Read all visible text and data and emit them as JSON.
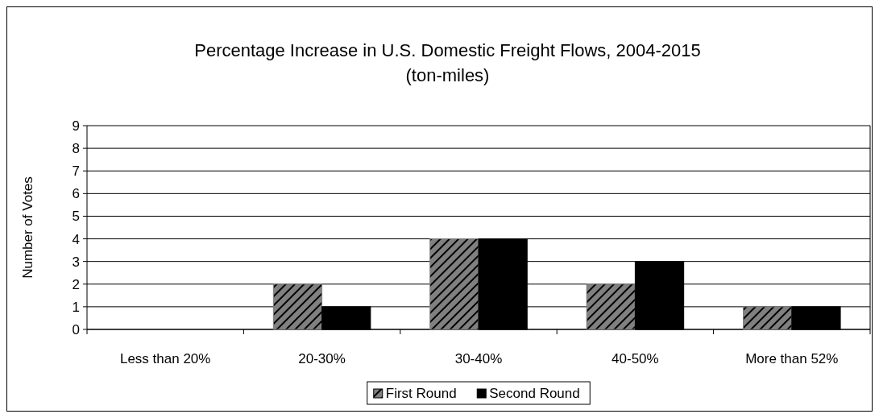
{
  "chart_data": {
    "type": "bar",
    "title": "Percentage Increase in U.S. Domestic Freight Flows, 2004-2015",
    "subtitle": "(ton-miles)",
    "ylabel": "Number of Votes",
    "categories": [
      "Less than 20%",
      "20-30%",
      "30-40%",
      "40-50%",
      "More than 52%"
    ],
    "series": [
      {
        "name": "First Round",
        "color": "#808080",
        "values": [
          0,
          2,
          4,
          2,
          1
        ]
      },
      {
        "name": "Second Round",
        "color": "#000000",
        "values": [
          0,
          1,
          4,
          3,
          1
        ]
      }
    ],
    "ylim": [
      0,
      9
    ],
    "yticks": [
      0,
      1,
      2,
      3,
      4,
      5,
      6,
      7,
      8,
      9
    ],
    "grid": "y",
    "legend": "bottom"
  }
}
